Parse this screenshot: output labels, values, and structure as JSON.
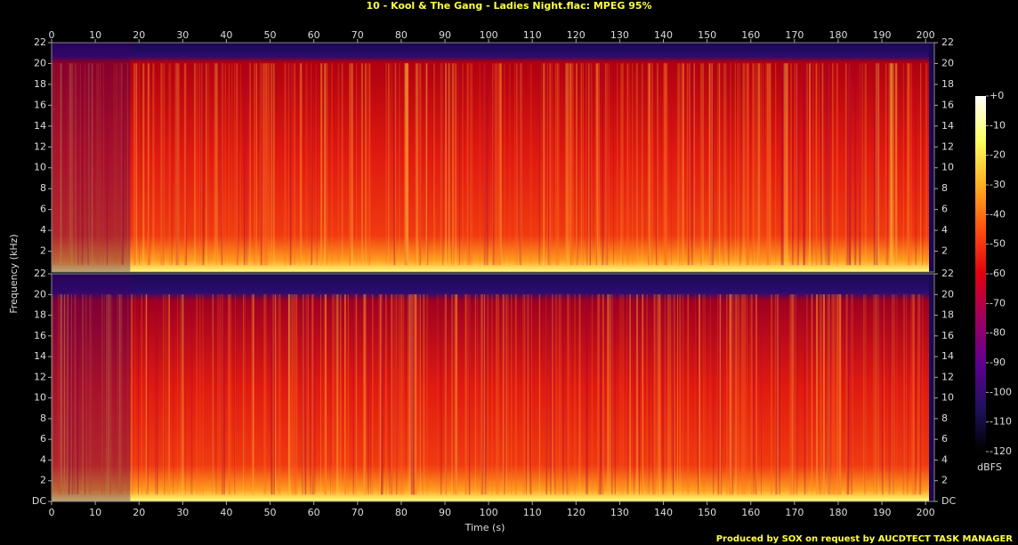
{
  "chart_data": {
    "type": "spectrogram",
    "title": "10 - Kool & The Gang - Ladies Night.flac: MPEG 95%",
    "xlabel": "Time (s)",
    "ylabel": "Frequency (kHz)",
    "xlim": [
      0,
      202
    ],
    "xticks": [
      0,
      10,
      20,
      30,
      40,
      50,
      60,
      70,
      80,
      90,
      100,
      110,
      120,
      130,
      140,
      150,
      160,
      170,
      180,
      190,
      200
    ],
    "channels": [
      {
        "ylim": [
          0,
          22
        ],
        "yticks": [
          2,
          4,
          6,
          8,
          10,
          12,
          14,
          16,
          18,
          20,
          22
        ]
      },
      {
        "ylim": [
          0,
          22
        ],
        "yticks": [
          {
            "value": 0,
            "label": "DC"
          },
          2,
          4,
          6,
          8,
          10,
          12,
          14,
          16,
          18,
          20,
          22
        ]
      }
    ],
    "colorbar": {
      "label": "dBFS",
      "lim": [
        -120,
        0
      ],
      "ticks": [
        {
          "value": 0,
          "label": "+0"
        },
        -10,
        -20,
        -30,
        -40,
        -50,
        -60,
        -70,
        -80,
        -90,
        -100,
        -110,
        -120
      ],
      "colors": [
        "#ffffff",
        "#ffff60",
        "#ffb020",
        "#ff5010",
        "#e00010",
        "#a00060",
        "#600090",
        "#201060",
        "#000000"
      ]
    },
    "footer": "Produced by SOX on request by AUCDTECT TASK MANAGER"
  }
}
